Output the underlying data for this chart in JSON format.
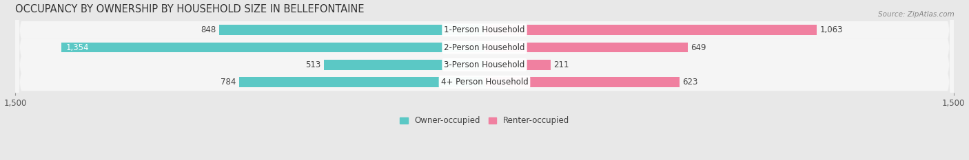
{
  "title": "OCCUPANCY BY OWNERSHIP BY HOUSEHOLD SIZE IN BELLEFONTAINE",
  "source": "Source: ZipAtlas.com",
  "categories": [
    "1-Person Household",
    "2-Person Household",
    "3-Person Household",
    "4+ Person Household"
  ],
  "owner_values": [
    848,
    1354,
    513,
    784
  ],
  "renter_values": [
    1063,
    649,
    211,
    623
  ],
  "owner_color": "#5BC8C5",
  "renter_color": "#F080A0",
  "owner_label": "Owner-occupied",
  "renter_label": "Renter-occupied",
  "xlim": [
    -1500,
    1500
  ],
  "xticklabels": [
    "1,500",
    "1,500"
  ],
  "bar_height": 0.58,
  "background_color": "#e8e8e8",
  "row_bg_color": "#f5f5f5",
  "title_fontsize": 10.5,
  "label_fontsize": 8.5,
  "value_fontsize": 8.5,
  "axis_fontsize": 8.5,
  "source_fontsize": 7.5
}
